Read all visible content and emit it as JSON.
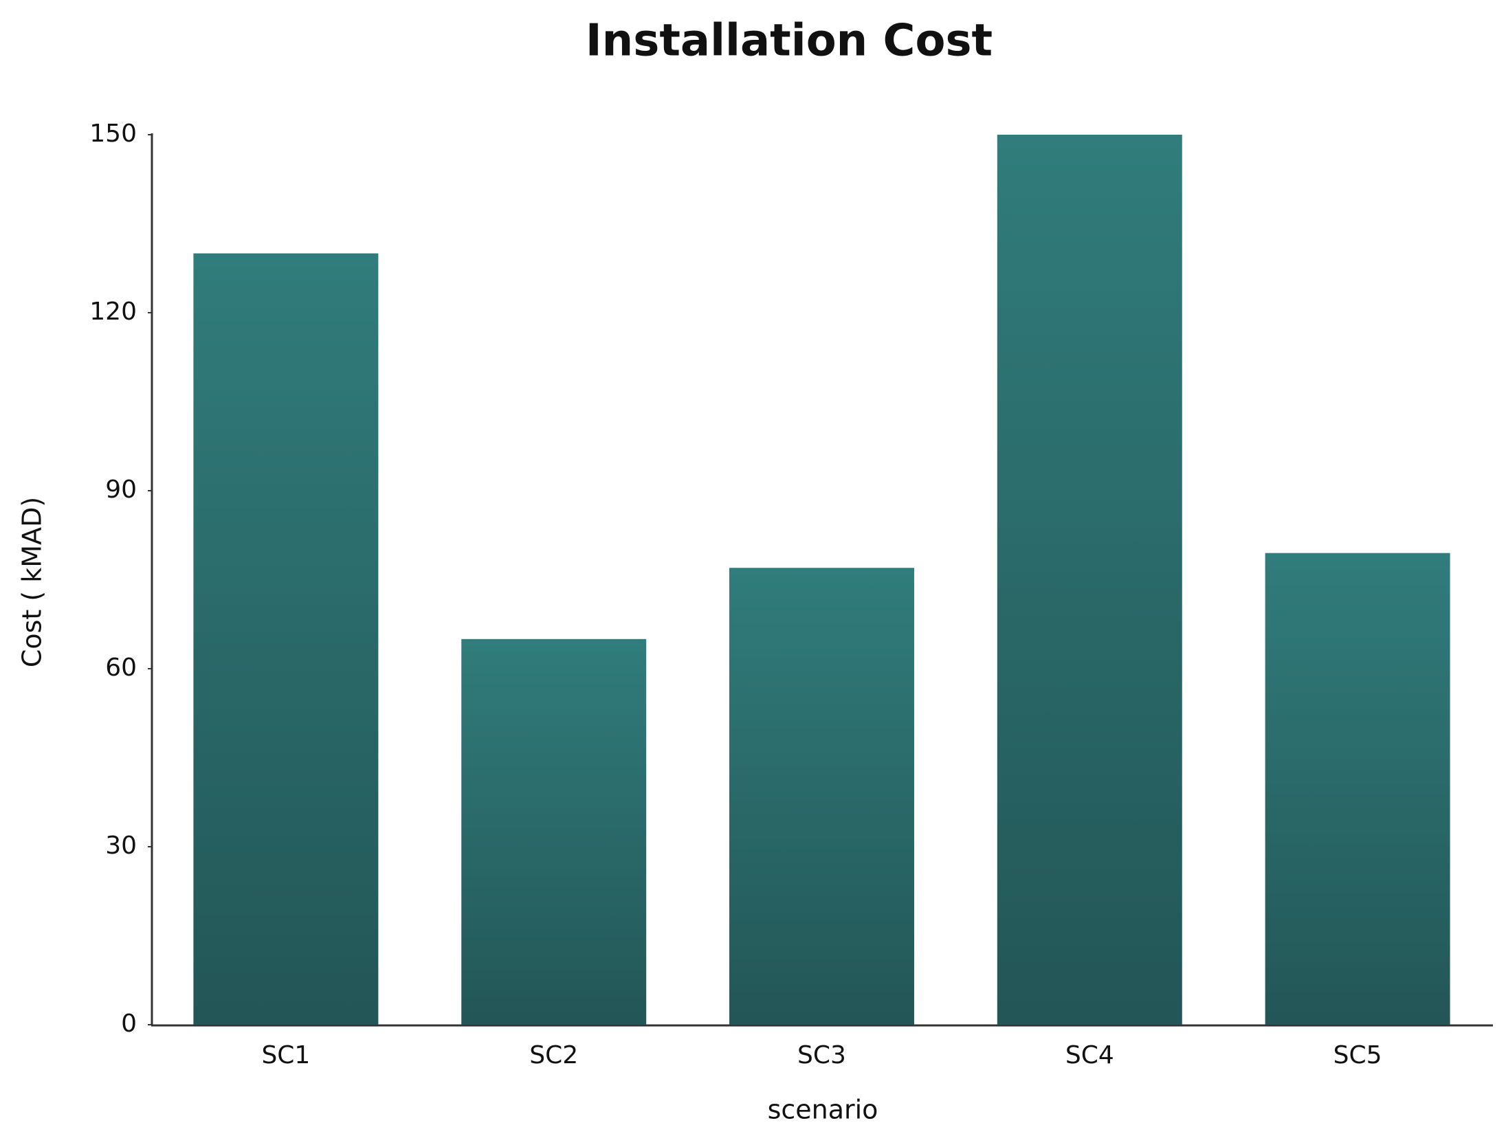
{
  "chart_data": {
    "type": "bar",
    "title": "Installation Cost",
    "x_label": "scenario",
    "y_label": "Cost ( kMAD)",
    "categories": [
      "SC1",
      "SC2",
      "SC3",
      "SC4",
      "SC5"
    ],
    "values": [
      130,
      65,
      77,
      150,
      79.5
    ],
    "gradient": [
      "#317c7c",
      "#235656"
    ],
    "ylim": [
      0,
      150
    ],
    "yticks": [
      0,
      30,
      60,
      90,
      120,
      150
    ],
    "grid": false
  }
}
